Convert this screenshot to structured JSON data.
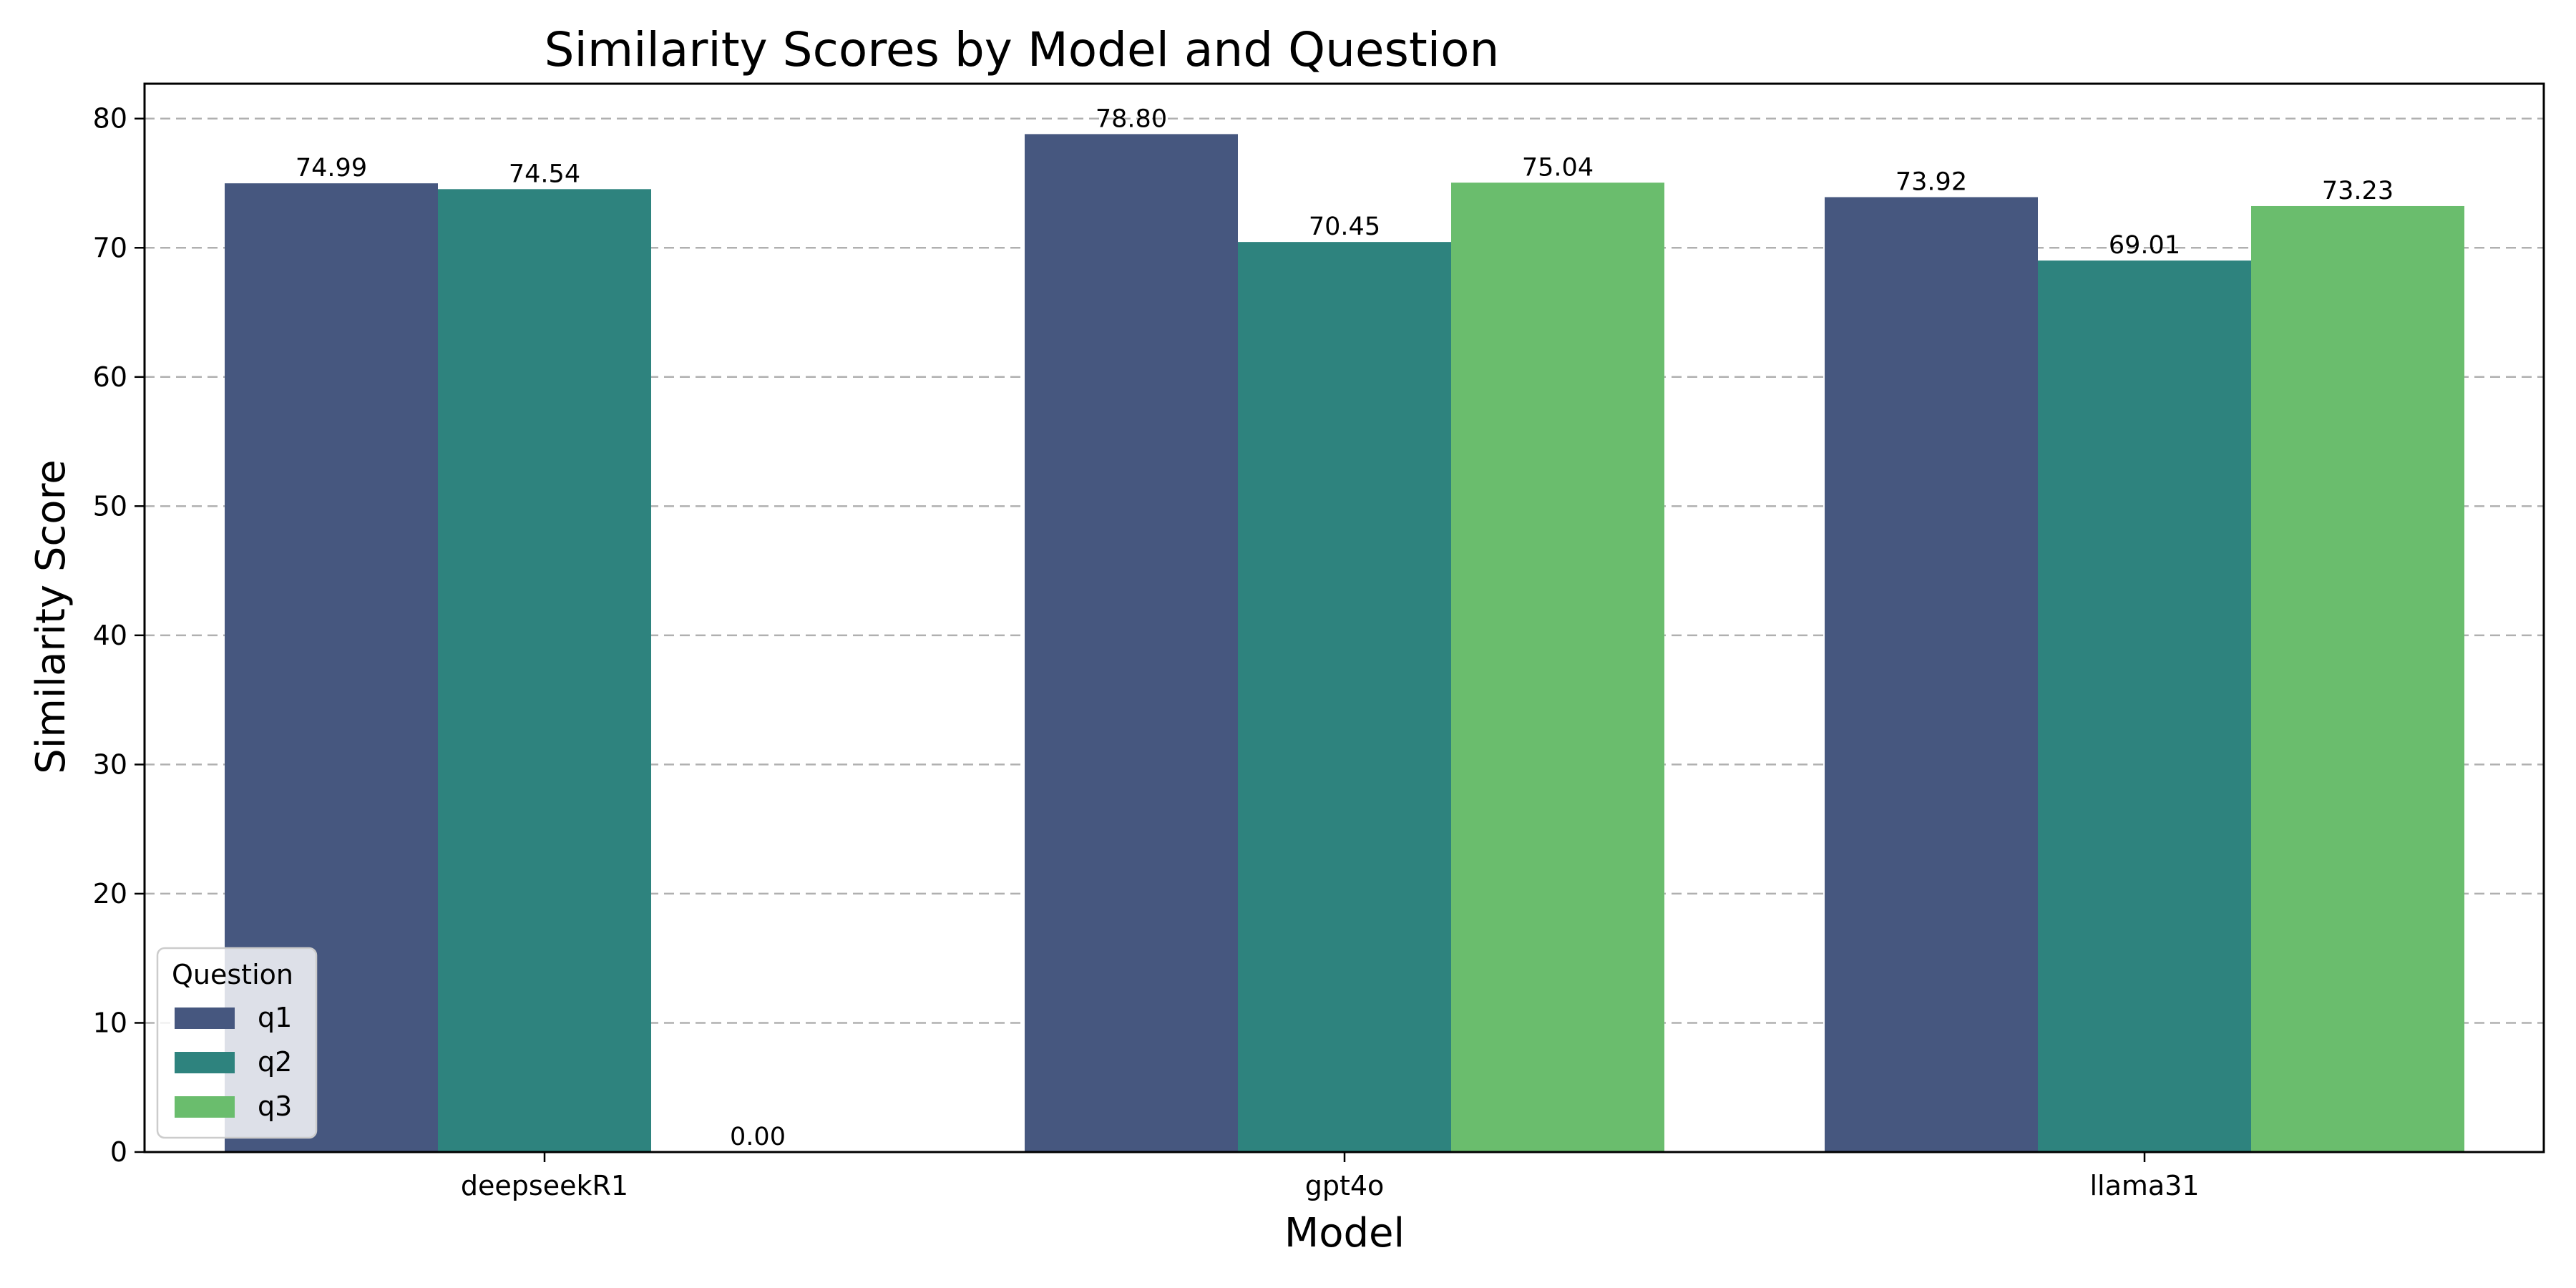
{
  "chart_data": {
    "type": "bar",
    "title": "Similarity Scores by Model and Question",
    "xlabel": "Model",
    "ylabel": "Similarity Score",
    "categories": [
      "deepseekR1",
      "gpt4o",
      "llama31"
    ],
    "series": [
      {
        "name": "q1",
        "color": "#46577f",
        "values": [
          74.99,
          78.8,
          73.92
        ],
        "labels": [
          "74.99",
          "78.80",
          "73.92"
        ]
      },
      {
        "name": "q2",
        "color": "#2e837e",
        "values": [
          74.54,
          70.45,
          69.01
        ],
        "labels": [
          "74.54",
          "70.45",
          "69.01"
        ]
      },
      {
        "name": "q3",
        "color": "#6abd6d",
        "values": [
          0,
          75.04,
          73.23
        ],
        "labels": [
          "0.00",
          "75.04",
          "73.23"
        ]
      }
    ],
    "ylim": [
      0,
      82.7
    ],
    "yticks": [
      "0",
      "10",
      "20",
      "30",
      "40",
      "50",
      "60",
      "70",
      "80"
    ],
    "grid": true,
    "legend": {
      "title": "Question",
      "placement": "lower-left"
    }
  }
}
